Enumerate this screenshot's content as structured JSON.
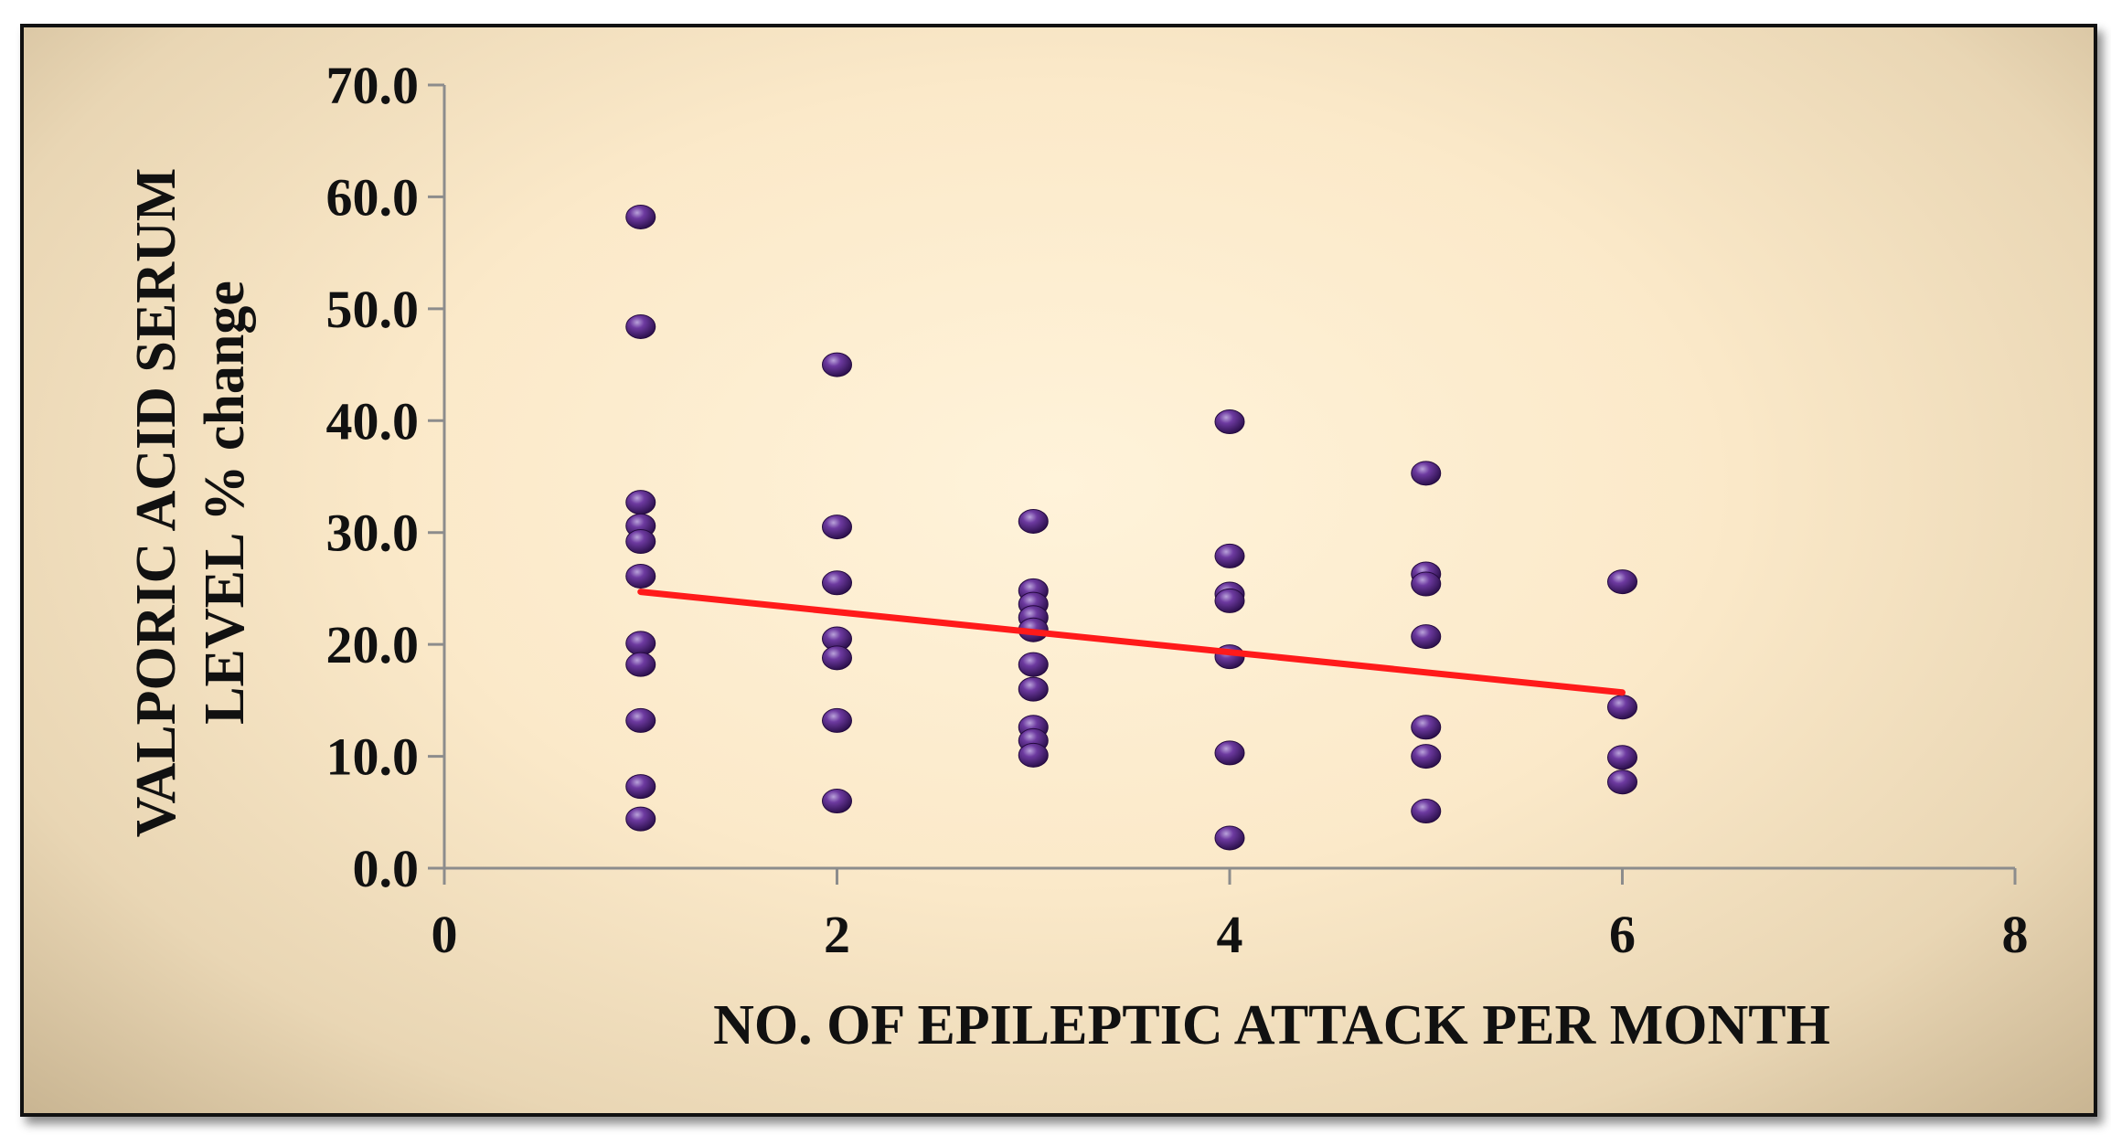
{
  "chart_data": {
    "type": "scatter",
    "title": "",
    "xlabel": "NO. OF EPILEPTIC ATTACK PER MONTH",
    "ylabel_lines": [
      "VALPORIC ACID SERUM",
      "LEVEL % change"
    ],
    "xlim": [
      0,
      8
    ],
    "ylim": [
      0,
      70
    ],
    "x_ticks": [
      "0",
      "2",
      "4",
      "6",
      "8"
    ],
    "y_ticks": [
      "0.0",
      "10.0",
      "20.0",
      "30.0",
      "40.0",
      "50.0",
      "60.0",
      "70.0"
    ],
    "grid": false,
    "legend": "none",
    "colors": {
      "points": "#5b2c8a",
      "trendline": "#ff1a1a",
      "axis": "#8c8c8c"
    },
    "points": [
      {
        "x": 1,
        "y": 58.2
      },
      {
        "x": 1,
        "y": 48.4
      },
      {
        "x": 1,
        "y": 32.7
      },
      {
        "x": 1,
        "y": 30.6
      },
      {
        "x": 1,
        "y": 29.2
      },
      {
        "x": 1,
        "y": 26.1
      },
      {
        "x": 1,
        "y": 20.1
      },
      {
        "x": 1,
        "y": 18.2
      },
      {
        "x": 1,
        "y": 13.2
      },
      {
        "x": 1,
        "y": 7.3
      },
      {
        "x": 1,
        "y": 4.4
      },
      {
        "x": 2,
        "y": 45.0
      },
      {
        "x": 2,
        "y": 30.5
      },
      {
        "x": 2,
        "y": 25.5
      },
      {
        "x": 2,
        "y": 20.5
      },
      {
        "x": 2,
        "y": 18.8
      },
      {
        "x": 2,
        "y": 13.2
      },
      {
        "x": 2,
        "y": 6.0
      },
      {
        "x": 3,
        "y": 31.0
      },
      {
        "x": 3,
        "y": 24.8
      },
      {
        "x": 3,
        "y": 23.6
      },
      {
        "x": 3,
        "y": 22.4
      },
      {
        "x": 3,
        "y": 21.3
      },
      {
        "x": 3,
        "y": 18.2
      },
      {
        "x": 3,
        "y": 16.0
      },
      {
        "x": 3,
        "y": 12.6
      },
      {
        "x": 3,
        "y": 11.4
      },
      {
        "x": 3,
        "y": 10.1
      },
      {
        "x": 4,
        "y": 39.9
      },
      {
        "x": 4,
        "y": 27.9
      },
      {
        "x": 4,
        "y": 24.5
      },
      {
        "x": 4,
        "y": 23.9
      },
      {
        "x": 4,
        "y": 18.9
      },
      {
        "x": 4,
        "y": 10.3
      },
      {
        "x": 4,
        "y": 2.7
      },
      {
        "x": 5,
        "y": 35.3
      },
      {
        "x": 5,
        "y": 26.3
      },
      {
        "x": 5,
        "y": 25.4
      },
      {
        "x": 5,
        "y": 20.7
      },
      {
        "x": 5,
        "y": 12.6
      },
      {
        "x": 5,
        "y": 10.0
      },
      {
        "x": 5,
        "y": 5.1
      },
      {
        "x": 6,
        "y": 25.6
      },
      {
        "x": 6,
        "y": 14.4
      },
      {
        "x": 6,
        "y": 9.9
      },
      {
        "x": 6,
        "y": 7.7
      }
    ],
    "trendline": {
      "x": [
        1,
        6
      ],
      "y": [
        24.7,
        15.7
      ]
    }
  }
}
